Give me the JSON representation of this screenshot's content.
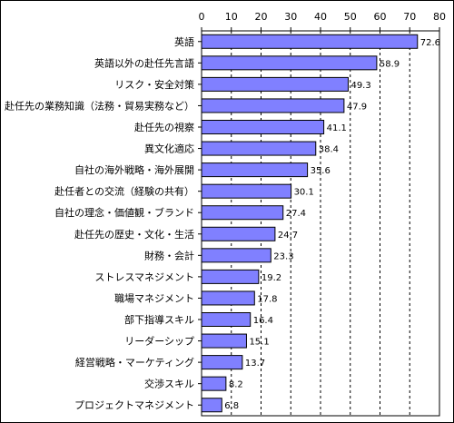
{
  "chart_data": {
    "type": "bar",
    "orientation": "horizontal",
    "title": "",
    "xlabel": "",
    "ylabel": "",
    "xlim": [
      0,
      80
    ],
    "x_ticks": [
      "0",
      "10",
      "20",
      "30",
      "40",
      "50",
      "60",
      "70",
      "80"
    ],
    "x_ticks_position": "top",
    "grid": "vertical dashed",
    "legend": "none",
    "bar_color": "#8080ff",
    "categories": [
      "英語",
      "英語以外の赴任先言語",
      "リスク・安全対策",
      "赴任先の業務知識（法務・貿易実務など）",
      "赴任先の視察",
      "異文化適応",
      "自社の海外戦略・海外展開",
      "赴任者との交流（経験の共有）",
      "自社の理念・価値観・ブランド",
      "赴任先の歴史・文化・生活",
      "財務・会計",
      "ストレスマネジメント",
      "職場マネジメント",
      "部下指導スキル",
      "リーダーシップ",
      "経営戦略・マーケティング",
      "交渉スキル",
      "プロジェクトマネジメント"
    ],
    "values": [
      72.6,
      58.9,
      49.3,
      47.9,
      41.1,
      38.4,
      35.6,
      30.1,
      27.4,
      24.7,
      23.3,
      19.2,
      17.8,
      16.4,
      15.1,
      13.7,
      8.2,
      6.8
    ],
    "data_labels": [
      "72.6",
      "58.9",
      "49.3",
      "47.9",
      "41.1",
      "38.4",
      "35.6",
      "30.1",
      "27.4",
      "24.7",
      "23.3",
      "19.2",
      "17.8",
      "16.4",
      "15.1",
      "13.7",
      "8.2",
      "6.8"
    ]
  }
}
